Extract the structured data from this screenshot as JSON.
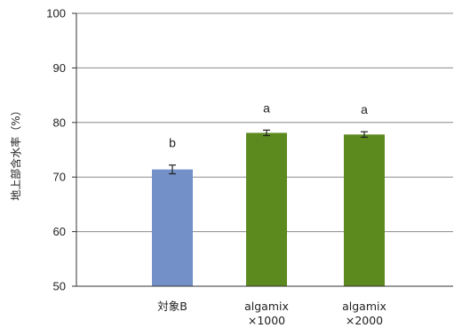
{
  "chart_data": {
    "type": "bar",
    "title": "",
    "xlabel": "",
    "ylabel": "地上部含水率（%）",
    "ylim": [
      50,
      100
    ],
    "yticks": [
      50,
      60,
      70,
      80,
      90,
      100
    ],
    "grid": true,
    "legend": "none",
    "categories": [
      [
        "対象B"
      ],
      [
        "algamix",
        "×1000"
      ],
      [
        "algamix",
        "×2000"
      ]
    ],
    "values": [
      71.4,
      78.1,
      77.8
    ],
    "errors": [
      0.8,
      0.5,
      0.5
    ],
    "annotations": [
      "b",
      "a",
      "a"
    ],
    "colors": [
      "#7390c9",
      "#5c8a1e",
      "#5c8a1e"
    ]
  }
}
